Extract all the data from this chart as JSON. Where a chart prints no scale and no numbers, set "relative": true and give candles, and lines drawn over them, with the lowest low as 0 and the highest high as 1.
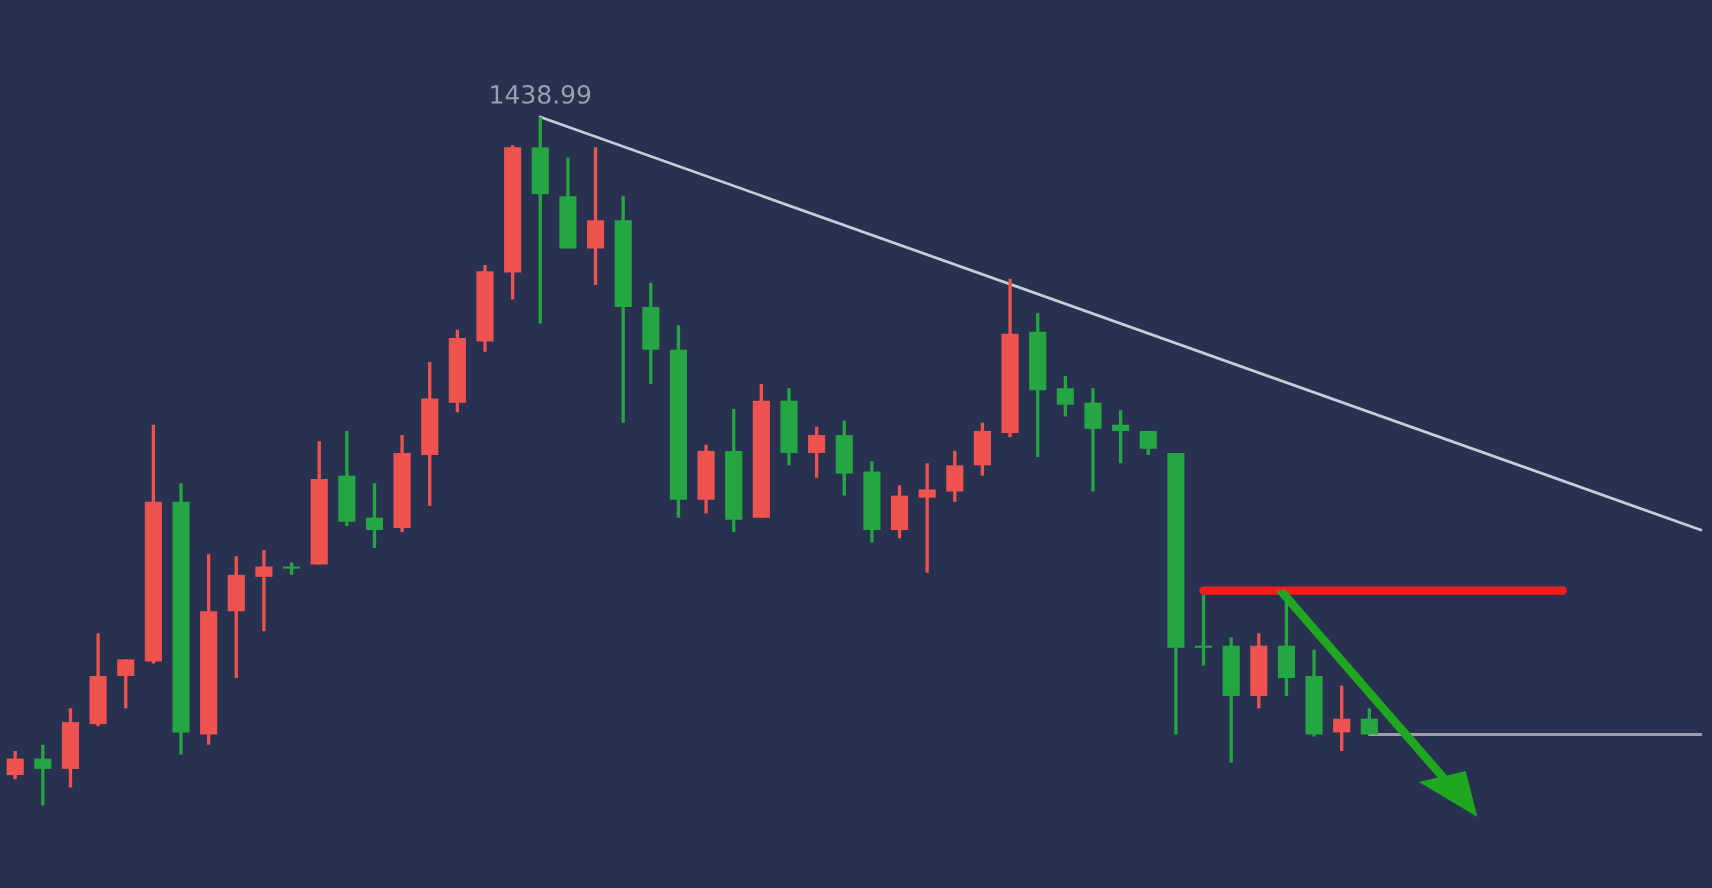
{
  "chart_data": {
    "type": "candlestick",
    "relative": true,
    "categories": [
      null,
      null,
      null,
      null,
      null,
      null,
      null,
      null,
      null,
      null,
      null,
      null,
      null,
      null,
      null,
      null,
      null,
      null,
      null,
      null,
      null,
      null,
      null,
      null,
      null,
      null,
      null,
      null,
      null,
      null,
      null,
      null,
      null,
      null,
      null,
      null,
      null,
      null,
      null,
      null,
      null,
      null,
      null,
      null,
      null,
      null,
      null,
      null,
      null,
      null,
      null,
      null,
      null,
      null,
      null,
      null,
      null,
      null,
      null,
      null,
      null,
      null
    ],
    "ohlc": [
      [
        0.044,
        0.079,
        0.038,
        0.068
      ],
      [
        0.068,
        0.088,
        0,
        0.053
      ],
      [
        0.053,
        0.141,
        0.026,
        0.121
      ],
      [
        0.118,
        0.25,
        0.115,
        0.188
      ],
      [
        0.188,
        0.212,
        0.141,
        0.212
      ],
      [
        0.209,
        0.553,
        0.206,
        0.441
      ],
      [
        0.441,
        0.468,
        0.074,
        0.106
      ],
      [
        0.103,
        0.365,
        0.088,
        0.282
      ],
      [
        0.282,
        0.362,
        0.185,
        0.335
      ],
      [
        0.332,
        0.371,
        0.253,
        0.347
      ],
      [
        0.347,
        0.353,
        0.335,
        0.344
      ],
      [
        0.35,
        0.529,
        0.35,
        0.474
      ],
      [
        0.479,
        0.544,
        0.406,
        0.412
      ],
      [
        0.418,
        0.468,
        0.374,
        0.4
      ],
      [
        0.403,
        0.538,
        0.397,
        0.512
      ],
      [
        0.509,
        0.644,
        0.435,
        0.591
      ],
      [
        0.585,
        0.691,
        0.571,
        0.679
      ],
      [
        0.674,
        0.785,
        0.659,
        0.776
      ],
      [
        0.774,
        0.959,
        0.735,
        0.956
      ],
      [
        0.956,
        1,
        0.7,
        0.888
      ],
      [
        0.885,
        0.941,
        0.809,
        0.809
      ],
      [
        0.809,
        0.956,
        0.756,
        0.85
      ],
      [
        0.85,
        0.885,
        0.556,
        0.724
      ],
      [
        0.724,
        0.759,
        0.612,
        0.662
      ],
      [
        0.662,
        0.697,
        0.418,
        0.444
      ],
      [
        0.444,
        0.524,
        0.424,
        0.515
      ],
      [
        0.515,
        0.576,
        0.397,
        0.415
      ],
      [
        0.418,
        0.612,
        0.418,
        0.588
      ],
      [
        0.588,
        0.606,
        0.494,
        0.512
      ],
      [
        0.512,
        0.55,
        0.476,
        0.538
      ],
      [
        0.538,
        0.559,
        0.45,
        0.482
      ],
      [
        0.485,
        0.5,
        0.382,
        0.4
      ],
      [
        0.4,
        0.465,
        0.388,
        0.45
      ],
      [
        0.447,
        0.497,
        0.338,
        0.459
      ],
      [
        0.456,
        0.515,
        0.441,
        0.494
      ],
      [
        0.494,
        0.556,
        0.479,
        0.544
      ],
      [
        0.541,
        0.765,
        0.535,
        0.685
      ],
      [
        0.688,
        0.715,
        0.506,
        0.603
      ],
      [
        0.606,
        0.624,
        0.565,
        0.582
      ],
      [
        0.585,
        0.606,
        0.456,
        0.547
      ],
      [
        0.553,
        0.574,
        0.497,
        0.544
      ],
      [
        0.544,
        0.544,
        0.509,
        0.518
      ],
      [
        0.512,
        0.512,
        0.103,
        0.229
      ],
      [
        0.232,
        0.306,
        0.203,
        0.229
      ],
      [
        0.232,
        0.244,
        0.062,
        0.159
      ],
      [
        0.159,
        0.25,
        0.141,
        0.232
      ],
      [
        0.232,
        0.3,
        0.159,
        0.185
      ],
      [
        0.188,
        0.226,
        0.1,
        0.103
      ],
      [
        0.106,
        0.174,
        0.079,
        0.126
      ],
      [
        0.126,
        0.141,
        0.103,
        0.103
      ],
      null,
      null,
      null,
      null,
      null,
      null,
      null,
      null,
      null,
      null,
      null,
      null
    ],
    "colors": [
      "#ef5350",
      "#26a543",
      "#ef5350",
      "#ef5350",
      "#ef5350",
      "#ef5350",
      "#26a543",
      "#ef5350",
      "#ef5350",
      "#ef5350",
      "#26a543",
      "#ef5350",
      "#26a543",
      "#26a543",
      "#ef5350",
      "#ef5350",
      "#ef5350",
      "#ef5350",
      "#ef5350",
      "#26a543",
      "#26a543",
      "#ef5350",
      "#26a543",
      "#26a543",
      "#26a543",
      "#ef5350",
      "#26a543",
      "#ef5350",
      "#26a543",
      "#ef5350",
      "#26a543",
      "#26a543",
      "#ef5350",
      "#ef5350",
      "#ef5350",
      "#ef5350",
      "#ef5350",
      "#26a543",
      "#26a543",
      "#26a543",
      "#26a543",
      "#26a543",
      "#26a543",
      "#26a543",
      "#26a543",
      "#ef5350",
      "#26a543",
      "#26a543",
      "#ef5350",
      "#26a543",
      null,
      null,
      null,
      null,
      null,
      null,
      null,
      null,
      null,
      null,
      null,
      null
    ],
    "series": [
      {
        "type": "line",
        "color": "#c8ccd6",
        "values": [
          null,
          null,
          null,
          null,
          null,
          null,
          null,
          null,
          null,
          null,
          null,
          null,
          null,
          null,
          null,
          null,
          null,
          null,
          null,
          1,
          null,
          null,
          null,
          null,
          null,
          null,
          null,
          null,
          null,
          null,
          null,
          null,
          null,
          null,
          null,
          null,
          null,
          null,
          null,
          null,
          null,
          null,
          null,
          null,
          null,
          null,
          null,
          null,
          null,
          null,
          null,
          null,
          null,
          null,
          null,
          null,
          null,
          null,
          null,
          null,
          null,
          0.4
        ]
      },
      {
        "type": "line",
        "color": "#9aa0ad",
        "values": [
          null,
          null,
          null,
          null,
          null,
          null,
          null,
          null,
          null,
          null,
          null,
          null,
          null,
          null,
          null,
          null,
          null,
          null,
          null,
          null,
          null,
          null,
          null,
          null,
          null,
          null,
          null,
          null,
          null,
          null,
          null,
          null,
          null,
          null,
          null,
          null,
          null,
          null,
          null,
          null,
          null,
          null,
          null,
          null,
          null,
          null,
          null,
          null,
          null,
          0.103,
          null,
          null,
          null,
          null,
          null,
          null,
          null,
          null,
          null,
          null,
          null,
          0.103
        ]
      },
      {
        "type": "line",
        "color": "#ff1a1a",
        "values": [
          null,
          null,
          null,
          null,
          null,
          null,
          null,
          null,
          null,
          null,
          null,
          null,
          null,
          null,
          null,
          null,
          null,
          null,
          null,
          null,
          null,
          null,
          null,
          null,
          null,
          null,
          null,
          null,
          null,
          null,
          null,
          null,
          null,
          null,
          null,
          null,
          null,
          null,
          null,
          null,
          null,
          null,
          null,
          0.312,
          null,
          null,
          null,
          null,
          null,
          null,
          null,
          null,
          null,
          null,
          null,
          null,
          0.312,
          null,
          null,
          null,
          null,
          null
        ]
      }
    ],
    "annotations": [
      "1438.99"
    ]
  }
}
